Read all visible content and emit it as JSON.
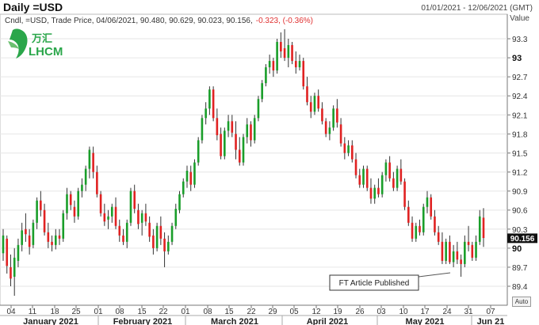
{
  "header": {
    "title": "Daily =USD",
    "date_range": "01/01/2021 - 12/06/2021 (GMT)",
    "value_axis_label": "Value",
    "auto_label": "Auto"
  },
  "logo": {
    "text_cn": "万汇",
    "text_en": "LHCM",
    "color": "#2aa64a"
  },
  "legend": {
    "prefix": "Cndl, =USD, Trade Price, 04/06/2021, 90.480, 90.629, 90.023, 90.156,",
    "change": "-0.323, (-0.36%)",
    "change_color": "#e03030"
  },
  "annotation": {
    "text": "FT Article Published"
  },
  "last_price": {
    "text": "90.156",
    "value": 90.156
  },
  "colors": {
    "up": "#1a9e2a",
    "down": "#e02222",
    "grid": "#e6e6e6"
  },
  "chart_data": {
    "type": "candlestick",
    "ylim": [
      89.2,
      93.5
    ],
    "y_ticks": [
      {
        "value": 93.3,
        "label": "93.3"
      },
      {
        "value": 93.0,
        "label": "93",
        "bold": true
      },
      {
        "value": 92.7,
        "label": "92.7"
      },
      {
        "value": 92.4,
        "label": "92.4"
      },
      {
        "value": 92.1,
        "label": "92.1"
      },
      {
        "value": 91.8,
        "label": "91.8"
      },
      {
        "value": 91.5,
        "label": "91.5"
      },
      {
        "value": 91.2,
        "label": "91.2"
      },
      {
        "value": 90.9,
        "label": "90.9"
      },
      {
        "value": 90.6,
        "label": "90.6"
      },
      {
        "value": 90.3,
        "label": "90.3"
      },
      {
        "value": 90.0,
        "label": "90",
        "bold": true
      },
      {
        "value": 89.7,
        "label": "89.7"
      },
      {
        "value": 89.4,
        "label": "89.4"
      }
    ],
    "x_day_labels": [
      "04",
      "11",
      "18",
      "25",
      "01",
      "08",
      "15",
      "22",
      "01",
      "08",
      "15",
      "22",
      "29",
      "05",
      "12",
      "19",
      "26",
      "03",
      "10",
      "17",
      "24",
      "31",
      "07"
    ],
    "x_month_labels": [
      "January 2021",
      "February 2021",
      "March 2021",
      "April 2021",
      "May 2021",
      "Jun 21"
    ],
    "candles": [
      [
        89.92,
        90.3,
        89.8,
        90.2
      ],
      [
        90.15,
        90.2,
        89.6,
        89.72
      ],
      [
        89.7,
        89.9,
        89.4,
        89.52
      ],
      [
        89.55,
        90.0,
        89.25,
        89.85
      ],
      [
        89.8,
        90.15,
        89.7,
        90.05
      ],
      [
        90.05,
        90.4,
        89.95,
        90.28
      ],
      [
        90.3,
        90.55,
        90.1,
        90.22
      ],
      [
        90.2,
        90.3,
        89.9,
        90.02
      ],
      [
        90.05,
        90.45,
        90.0,
        90.4
      ],
      [
        90.4,
        90.8,
        90.3,
        90.75
      ],
      [
        90.75,
        90.9,
        90.5,
        90.6
      ],
      [
        90.6,
        90.7,
        90.2,
        90.25
      ],
      [
        90.25,
        90.4,
        90.0,
        90.1
      ],
      [
        90.1,
        90.2,
        89.95,
        90.05
      ],
      [
        90.05,
        90.3,
        89.98,
        90.2
      ],
      [
        90.2,
        90.3,
        90.05,
        90.15
      ],
      [
        90.15,
        90.6,
        90.1,
        90.55
      ],
      [
        90.55,
        90.95,
        90.45,
        90.85
      ],
      [
        90.85,
        90.9,
        90.6,
        90.68
      ],
      [
        90.65,
        90.75,
        90.4,
        90.5
      ],
      [
        90.5,
        90.95,
        90.45,
        90.9
      ],
      [
        90.9,
        91.1,
        90.8,
        91.0
      ],
      [
        91.0,
        91.3,
        90.9,
        91.25
      ],
      [
        91.25,
        91.6,
        91.1,
        91.55
      ],
      [
        91.5,
        91.6,
        91.1,
        91.2
      ],
      [
        91.2,
        91.3,
        90.8,
        90.85
      ],
      [
        90.85,
        90.9,
        90.5,
        90.55
      ],
      [
        90.55,
        90.7,
        90.35,
        90.42
      ],
      [
        90.45,
        90.6,
        90.3,
        90.5
      ],
      [
        90.5,
        90.7,
        90.4,
        90.65
      ],
      [
        90.65,
        90.8,
        90.3,
        90.35
      ],
      [
        90.35,
        90.45,
        90.1,
        90.2
      ],
      [
        90.2,
        90.3,
        90.05,
        90.1
      ],
      [
        90.1,
        90.45,
        90.0,
        90.4
      ],
      [
        90.4,
        90.95,
        90.35,
        90.9
      ],
      [
        90.9,
        91.0,
        90.55,
        90.62
      ],
      [
        90.6,
        90.7,
        90.3,
        90.38
      ],
      [
        90.4,
        90.6,
        90.2,
        90.55
      ],
      [
        90.55,
        90.7,
        90.35,
        90.42
      ],
      [
        90.4,
        90.5,
        90.1,
        90.18
      ],
      [
        90.2,
        90.3,
        89.9,
        90.0
      ],
      [
        90.0,
        90.4,
        89.95,
        90.35
      ],
      [
        90.35,
        90.5,
        90.05,
        90.15
      ],
      [
        90.15,
        90.25,
        89.7,
        89.95
      ],
      [
        89.95,
        90.2,
        89.9,
        90.1
      ],
      [
        90.1,
        90.4,
        90.05,
        90.35
      ],
      [
        90.35,
        90.7,
        90.3,
        90.62
      ],
      [
        90.6,
        90.9,
        90.55,
        90.85
      ],
      [
        90.85,
        91.1,
        90.8,
        91.05
      ],
      [
        91.05,
        91.3,
        90.95,
        91.22
      ],
      [
        91.2,
        91.3,
        90.9,
        91.0
      ],
      [
        91.0,
        91.4,
        90.95,
        91.35
      ],
      [
        91.35,
        91.75,
        91.3,
        91.7
      ],
      [
        91.7,
        92.1,
        91.65,
        92.05
      ],
      [
        92.05,
        92.3,
        91.95,
        92.2
      ],
      [
        92.2,
        92.55,
        92.1,
        92.5
      ],
      [
        92.5,
        92.55,
        92.0,
        92.05
      ],
      [
        92.05,
        92.2,
        91.7,
        91.78
      ],
      [
        91.8,
        91.9,
        91.4,
        91.45
      ],
      [
        91.45,
        91.9,
        91.4,
        91.85
      ],
      [
        91.85,
        92.1,
        91.75,
        92.0
      ],
      [
        92.0,
        92.1,
        91.75,
        91.82
      ],
      [
        91.8,
        92.0,
        91.4,
        91.55
      ],
      [
        91.55,
        91.75,
        91.3,
        91.35
      ],
      [
        91.35,
        91.8,
        91.3,
        91.75
      ],
      [
        91.75,
        92.05,
        91.65,
        91.95
      ],
      [
        91.95,
        92.0,
        91.6,
        91.7
      ],
      [
        91.7,
        92.1,
        91.65,
        92.05
      ],
      [
        92.05,
        92.4,
        92.0,
        92.35
      ],
      [
        92.35,
        92.65,
        92.3,
        92.6
      ],
      [
        92.6,
        92.9,
        92.55,
        92.85
      ],
      [
        92.85,
        93.05,
        92.75,
        92.95
      ],
      [
        92.95,
        93.0,
        92.7,
        92.8
      ],
      [
        92.8,
        93.3,
        92.75,
        93.25
      ],
      [
        93.25,
        93.4,
        93.0,
        93.1
      ],
      [
        93.15,
        93.45,
        92.95,
        93.0
      ],
      [
        93.0,
        93.3,
        92.85,
        93.2
      ],
      [
        93.2,
        93.25,
        92.9,
        92.95
      ],
      [
        92.95,
        93.1,
        92.75,
        92.85
      ],
      [
        92.85,
        93.05,
        92.8,
        92.95
      ],
      [
        92.95,
        93.0,
        92.5,
        92.55
      ],
      [
        92.55,
        92.7,
        92.25,
        92.3
      ],
      [
        92.3,
        92.4,
        92.05,
        92.15
      ],
      [
        92.15,
        92.45,
        92.1,
        92.4
      ],
      [
        92.4,
        92.5,
        92.15,
        92.2
      ],
      [
        92.2,
        92.3,
        91.95,
        92.0
      ],
      [
        92.0,
        92.05,
        91.75,
        91.8
      ],
      [
        91.8,
        92.0,
        91.7,
        91.9
      ],
      [
        91.9,
        92.25,
        91.85,
        92.2
      ],
      [
        92.2,
        92.35,
        91.9,
        91.98
      ],
      [
        91.95,
        92.05,
        91.6,
        91.65
      ],
      [
        91.65,
        91.75,
        91.4,
        91.5
      ],
      [
        91.5,
        91.7,
        91.45,
        91.62
      ],
      [
        91.62,
        91.7,
        91.35,
        91.4
      ],
      [
        91.4,
        91.5,
        91.1,
        91.15
      ],
      [
        91.15,
        91.25,
        90.95,
        91.0
      ],
      [
        91.0,
        91.3,
        90.95,
        91.25
      ],
      [
        91.25,
        91.3,
        90.9,
        90.95
      ],
      [
        90.95,
        91.1,
        90.7,
        90.78
      ],
      [
        90.78,
        91.0,
        90.7,
        90.95
      ],
      [
        90.95,
        91.1,
        90.8,
        90.85
      ],
      [
        90.85,
        91.2,
        90.8,
        91.15
      ],
      [
        91.15,
        91.4,
        91.05,
        91.35
      ],
      [
        91.35,
        91.45,
        91.05,
        91.1
      ],
      [
        91.1,
        91.2,
        90.9,
        90.95
      ],
      [
        90.95,
        91.3,
        90.9,
        91.25
      ],
      [
        91.25,
        91.4,
        91.0,
        91.05
      ],
      [
        91.05,
        91.1,
        90.6,
        90.65
      ],
      [
        90.65,
        90.75,
        90.35,
        90.4
      ],
      [
        90.4,
        90.5,
        90.1,
        90.15
      ],
      [
        90.15,
        90.4,
        90.1,
        90.35
      ],
      [
        90.35,
        90.45,
        90.2,
        90.25
      ],
      [
        90.25,
        90.7,
        90.2,
        90.65
      ],
      [
        90.65,
        90.9,
        90.55,
        90.8
      ],
      [
        90.8,
        90.85,
        90.45,
        90.5
      ],
      [
        90.5,
        90.6,
        90.2,
        90.25
      ],
      [
        90.25,
        90.35,
        90.05,
        90.1
      ],
      [
        90.1,
        90.25,
        89.75,
        89.8
      ],
      [
        89.8,
        90.15,
        89.75,
        90.1
      ],
      [
        90.1,
        90.2,
        89.75,
        89.78
      ],
      [
        89.78,
        90.05,
        89.7,
        89.95
      ],
      [
        89.95,
        90.1,
        89.75,
        89.82
      ],
      [
        89.82,
        89.9,
        89.55,
        89.75
      ],
      [
        89.75,
        90.2,
        89.7,
        90.1
      ],
      [
        90.1,
        90.35,
        89.95,
        90.05
      ],
      [
        90.05,
        90.1,
        89.8,
        89.85
      ],
      [
        89.85,
        90.2,
        89.8,
        90.1
      ],
      [
        90.1,
        90.6,
        90.05,
        90.5
      ],
      [
        90.48,
        90.63,
        90.02,
        90.16
      ]
    ]
  }
}
